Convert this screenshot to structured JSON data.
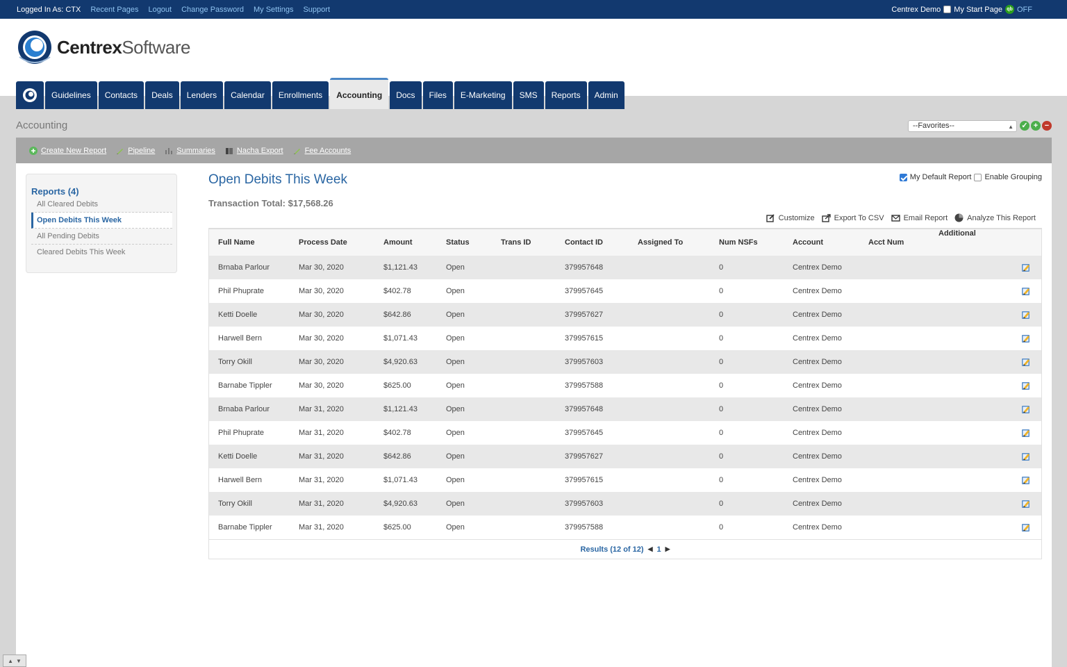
{
  "topbar": {
    "logged_in": "Logged In As: CTX",
    "links": [
      "Recent Pages",
      "Logout",
      "Change Password",
      "My Settings",
      "Support"
    ],
    "company": "Centrex Demo",
    "start_page": "My Start Page",
    "qb": "qb",
    "qb_state": "OFF"
  },
  "logo": {
    "bold": "Centrex",
    "light": "Software"
  },
  "nav": {
    "tabs": [
      "Guidelines",
      "Contacts",
      "Deals",
      "Lenders",
      "Calendar",
      "Enrollments",
      "Accounting",
      "Docs",
      "Files",
      "E-Marketing",
      "SMS",
      "Reports",
      "Admin"
    ],
    "active": "Accounting"
  },
  "page": {
    "heading": "Accounting",
    "favorites": "--Favorites--"
  },
  "actions": [
    "Create New Report",
    "Pipeline",
    "Summaries",
    "Nacha Export",
    "Fee Accounts"
  ],
  "sidebar": {
    "title": "Reports (4)",
    "items": [
      "All Cleared Debits",
      "Open Debits This Week",
      "All Pending Debits",
      "Cleared Debits This Week"
    ],
    "active_index": 1
  },
  "report": {
    "title": "Open Debits This Week",
    "total": "Transaction Total: $17,568.26",
    "default_label": "My Default Report",
    "default_checked": true,
    "grouping_label": "Enable Grouping",
    "grouping_checked": false,
    "tools": [
      "Customize",
      "Export To CSV",
      "Email Report",
      "Analyze This Report"
    ]
  },
  "table": {
    "columns": [
      "Full Name",
      "Process Date",
      "Amount",
      "Status",
      "Trans ID",
      "Contact ID",
      "Assigned To",
      "Num NSFs",
      "Account",
      "Acct Num",
      "Additional"
    ],
    "rows": [
      [
        "Brnaba Parlour",
        "Mar 30, 2020",
        "$1,121.43",
        "Open",
        "",
        "379957648",
        "",
        "0",
        "Centrex Demo",
        "",
        ""
      ],
      [
        "Phil Phuprate",
        "Mar 30, 2020",
        "$402.78",
        "Open",
        "",
        "379957645",
        "",
        "0",
        "Centrex Demo",
        "",
        ""
      ],
      [
        "Ketti Doelle",
        "Mar 30, 2020",
        "$642.86",
        "Open",
        "",
        "379957627",
        "",
        "0",
        "Centrex Demo",
        "",
        ""
      ],
      [
        "Harwell Bern",
        "Mar 30, 2020",
        "$1,071.43",
        "Open",
        "",
        "379957615",
        "",
        "0",
        "Centrex Demo",
        "",
        ""
      ],
      [
        "Torry Okill",
        "Mar 30, 2020",
        "$4,920.63",
        "Open",
        "",
        "379957603",
        "",
        "0",
        "Centrex Demo",
        "",
        ""
      ],
      [
        "Barnabe Tippler",
        "Mar 30, 2020",
        "$625.00",
        "Open",
        "",
        "379957588",
        "",
        "0",
        "Centrex Demo",
        "",
        ""
      ],
      [
        "Brnaba Parlour",
        "Mar 31, 2020",
        "$1,121.43",
        "Open",
        "",
        "379957648",
        "",
        "0",
        "Centrex Demo",
        "",
        ""
      ],
      [
        "Phil Phuprate",
        "Mar 31, 2020",
        "$402.78",
        "Open",
        "",
        "379957645",
        "",
        "0",
        "Centrex Demo",
        "",
        ""
      ],
      [
        "Ketti Doelle",
        "Mar 31, 2020",
        "$642.86",
        "Open",
        "",
        "379957627",
        "",
        "0",
        "Centrex Demo",
        "",
        ""
      ],
      [
        "Harwell Bern",
        "Mar 31, 2020",
        "$1,071.43",
        "Open",
        "",
        "379957615",
        "",
        "0",
        "Centrex Demo",
        "",
        ""
      ],
      [
        "Torry Okill",
        "Mar 31, 2020",
        "$4,920.63",
        "Open",
        "",
        "379957603",
        "",
        "0",
        "Centrex Demo",
        "",
        ""
      ],
      [
        "Barnabe Tippler",
        "Mar 31, 2020",
        "$625.00",
        "Open",
        "",
        "379957588",
        "",
        "0",
        "Centrex Demo",
        "",
        ""
      ]
    ],
    "results": "Results (12 of 12)",
    "page": "1"
  },
  "colors": {
    "navy": "#12396f",
    "link_blue": "#2a66a3",
    "action_bar": "#a6a6a6",
    "gray_bg": "#d6d6d6"
  },
  "icons": {
    "edit": "edit-icon",
    "customize": "customize-icon",
    "export": "export-icon",
    "email": "email-icon",
    "analyze": "pie-chart-icon"
  }
}
